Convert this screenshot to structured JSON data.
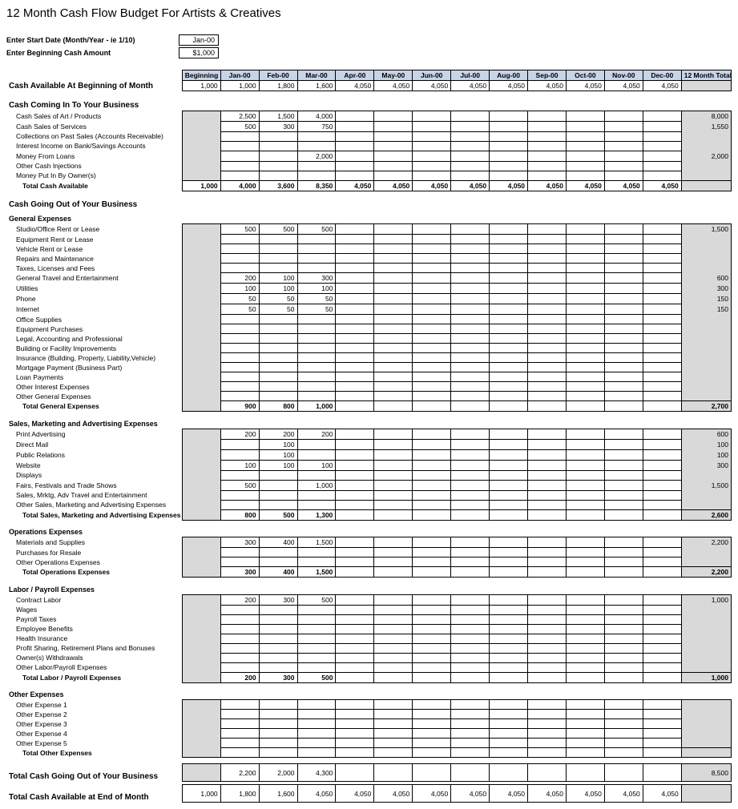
{
  "title": "12 Month Cash Flow Budget For Artists & Creatives",
  "inputs": {
    "startDateLabel": "Enter Start Date (Month/Year - ie 1/10)",
    "startDateValue": "Jan-00",
    "beginCashLabel": "Enter Beginning Cash Amount",
    "beginCashValue": "$1,000"
  },
  "headers": [
    "Beginning",
    "Jan-00",
    "Feb-00",
    "Mar-00",
    "Apr-00",
    "May-00",
    "Jun-00",
    "Jul-00",
    "Aug-00",
    "Sep-00",
    "Oct-00",
    "Nov-00",
    "Dec-00",
    "12 Month Total"
  ],
  "cashAvailLabel": "Cash Available At Beginning of Month",
  "cashAvail": [
    "1,000",
    "1,000",
    "1,800",
    "1,600",
    "4,050",
    "4,050",
    "4,050",
    "4,050",
    "4,050",
    "4,050",
    "4,050",
    "4,050",
    "4,050",
    ""
  ],
  "cashInTitle": "Cash Coming In To Your Business",
  "cashInRows": [
    {
      "label": "Cash Sales of Art / Products",
      "v": [
        "",
        "2,500",
        "1,500",
        "4,000",
        "",
        "",
        "",
        "",
        "",
        "",
        "",
        "",
        "",
        "8,000"
      ]
    },
    {
      "label": "Cash Sales of Services",
      "v": [
        "",
        "500",
        "300",
        "750",
        "",
        "",
        "",
        "",
        "",
        "",
        "",
        "",
        "",
        "1,550"
      ]
    },
    {
      "label": "Collections on Past Sales (Accounts Receivable)",
      "v": [
        "",
        "",
        "",
        "",
        "",
        "",
        "",
        "",
        "",
        "",
        "",
        "",
        "",
        ""
      ]
    },
    {
      "label": "Interest Income on Bank/Savings Accounts",
      "v": [
        "",
        "",
        "",
        "",
        "",
        "",
        "",
        "",
        "",
        "",
        "",
        "",
        "",
        ""
      ]
    },
    {
      "label": "Money From Loans",
      "v": [
        "",
        "",
        "",
        "2,000",
        "",
        "",
        "",
        "",
        "",
        "",
        "",
        "",
        "",
        "2,000"
      ]
    },
    {
      "label": "Other Cash Injections",
      "v": [
        "",
        "",
        "",
        "",
        "",
        "",
        "",
        "",
        "",
        "",
        "",
        "",
        "",
        ""
      ]
    },
    {
      "label": "Money Put In By Owner(s)",
      "v": [
        "",
        "",
        "",
        "",
        "",
        "",
        "",
        "",
        "",
        "",
        "",
        "",
        "",
        ""
      ]
    }
  ],
  "totalCashAvailLabel": "Total Cash Available",
  "totalCashAvail": [
    "1,000",
    "4,000",
    "3,600",
    "8,350",
    "4,050",
    "4,050",
    "4,050",
    "4,050",
    "4,050",
    "4,050",
    "4,050",
    "4,050",
    "4,050",
    ""
  ],
  "cashOutTitle": "Cash Going Out of Your Business",
  "sections": [
    {
      "title": "General Expenses",
      "rows": [
        {
          "label": "Studio/Office Rent or Lease",
          "v": [
            "",
            "500",
            "500",
            "500",
            "",
            "",
            "",
            "",
            "",
            "",
            "",
            "",
            "",
            "1,500"
          ]
        },
        {
          "label": "Equipment Rent or Lease",
          "v": [
            "",
            "",
            "",
            "",
            "",
            "",
            "",
            "",
            "",
            "",
            "",
            "",
            "",
            ""
          ]
        },
        {
          "label": "Vehicle Rent or Lease",
          "v": [
            "",
            "",
            "",
            "",
            "",
            "",
            "",
            "",
            "",
            "",
            "",
            "",
            "",
            ""
          ]
        },
        {
          "label": "Repairs and Maintenance",
          "v": [
            "",
            "",
            "",
            "",
            "",
            "",
            "",
            "",
            "",
            "",
            "",
            "",
            "",
            ""
          ]
        },
        {
          "label": "Taxes, Licenses and Fees",
          "v": [
            "",
            "",
            "",
            "",
            "",
            "",
            "",
            "",
            "",
            "",
            "",
            "",
            "",
            ""
          ]
        },
        {
          "label": "General Travel and Entertainment",
          "v": [
            "",
            "200",
            "100",
            "300",
            "",
            "",
            "",
            "",
            "",
            "",
            "",
            "",
            "",
            "600"
          ]
        },
        {
          "label": "Utilities",
          "v": [
            "",
            "100",
            "100",
            "100",
            "",
            "",
            "",
            "",
            "",
            "",
            "",
            "",
            "",
            "300"
          ]
        },
        {
          "label": "Phone",
          "v": [
            "",
            "50",
            "50",
            "50",
            "",
            "",
            "",
            "",
            "",
            "",
            "",
            "",
            "",
            "150"
          ]
        },
        {
          "label": "Internet",
          "v": [
            "",
            "50",
            "50",
            "50",
            "",
            "",
            "",
            "",
            "",
            "",
            "",
            "",
            "",
            "150"
          ]
        },
        {
          "label": "Office Supplies",
          "v": [
            "",
            "",
            "",
            "",
            "",
            "",
            "",
            "",
            "",
            "",
            "",
            "",
            "",
            ""
          ]
        },
        {
          "label": "Equipment Purchases",
          "v": [
            "",
            "",
            "",
            "",
            "",
            "",
            "",
            "",
            "",
            "",
            "",
            "",
            "",
            ""
          ]
        },
        {
          "label": "Legal, Accounting and Professional",
          "v": [
            "",
            "",
            "",
            "",
            "",
            "",
            "",
            "",
            "",
            "",
            "",
            "",
            "",
            ""
          ]
        },
        {
          "label": "Building or Facility Improvements",
          "v": [
            "",
            "",
            "",
            "",
            "",
            "",
            "",
            "",
            "",
            "",
            "",
            "",
            "",
            ""
          ]
        },
        {
          "label": "Insurance (Building, Property, Liability,Vehicle)",
          "v": [
            "",
            "",
            "",
            "",
            "",
            "",
            "",
            "",
            "",
            "",
            "",
            "",
            "",
            ""
          ]
        },
        {
          "label": "Mortgage Payment (Business Part)",
          "v": [
            "",
            "",
            "",
            "",
            "",
            "",
            "",
            "",
            "",
            "",
            "",
            "",
            "",
            ""
          ]
        },
        {
          "label": "Loan Payments",
          "v": [
            "",
            "",
            "",
            "",
            "",
            "",
            "",
            "",
            "",
            "",
            "",
            "",
            "",
            ""
          ]
        },
        {
          "label": "Other Interest Expenses",
          "v": [
            "",
            "",
            "",
            "",
            "",
            "",
            "",
            "",
            "",
            "",
            "",
            "",
            "",
            ""
          ]
        },
        {
          "label": "Other General Expenses",
          "v": [
            "",
            "",
            "",
            "",
            "",
            "",
            "",
            "",
            "",
            "",
            "",
            "",
            "",
            ""
          ]
        }
      ],
      "totalLabel": "Total General Expenses",
      "total": [
        "",
        "900",
        "800",
        "1,000",
        "",
        "",
        "",
        "",
        "",
        "",
        "",
        "",
        "",
        "2,700"
      ]
    },
    {
      "title": "Sales, Marketing and Advertising Expenses",
      "rows": [
        {
          "label": "Print Advertising",
          "v": [
            "",
            "200",
            "200",
            "200",
            "",
            "",
            "",
            "",
            "",
            "",
            "",
            "",
            "",
            "600"
          ]
        },
        {
          "label": "Direct Mail",
          "v": [
            "",
            "",
            "100",
            "",
            "",
            "",
            "",
            "",
            "",
            "",
            "",
            "",
            "",
            "100"
          ]
        },
        {
          "label": "Public Relations",
          "v": [
            "",
            "",
            "100",
            "",
            "",
            "",
            "",
            "",
            "",
            "",
            "",
            "",
            "",
            "100"
          ]
        },
        {
          "label": "Website",
          "v": [
            "",
            "100",
            "100",
            "100",
            "",
            "",
            "",
            "",
            "",
            "",
            "",
            "",
            "",
            "300"
          ]
        },
        {
          "label": "Displays",
          "v": [
            "",
            "",
            "",
            "",
            "",
            "",
            "",
            "",
            "",
            "",
            "",
            "",
            "",
            ""
          ]
        },
        {
          "label": "Fairs, Festivals and Trade Shows",
          "v": [
            "",
            "500",
            "",
            "1,000",
            "",
            "",
            "",
            "",
            "",
            "",
            "",
            "",
            "",
            "1,500"
          ]
        },
        {
          "label": "Sales, Mrktg, Adv Travel and Entertainment",
          "v": [
            "",
            "",
            "",
            "",
            "",
            "",
            "",
            "",
            "",
            "",
            "",
            "",
            "",
            ""
          ]
        },
        {
          "label": "Other Sales, Marketing and Advertising Expenses",
          "v": [
            "",
            "",
            "",
            "",
            "",
            "",
            "",
            "",
            "",
            "",
            "",
            "",
            "",
            ""
          ]
        }
      ],
      "totalLabel": "Total Sales, Marketing and Advertising Expenses",
      "total": [
        "",
        "800",
        "500",
        "1,300",
        "",
        "",
        "",
        "",
        "",
        "",
        "",
        "",
        "",
        "2,600"
      ]
    },
    {
      "title": "Operations Expenses",
      "rows": [
        {
          "label": "Materials and Supplies",
          "v": [
            "",
            "300",
            "400",
            "1,500",
            "",
            "",
            "",
            "",
            "",
            "",
            "",
            "",
            "",
            "2,200"
          ]
        },
        {
          "label": "Purchases for Resale",
          "v": [
            "",
            "",
            "",
            "",
            "",
            "",
            "",
            "",
            "",
            "",
            "",
            "",
            "",
            ""
          ]
        },
        {
          "label": "Other Operations Expenses",
          "v": [
            "",
            "",
            "",
            "",
            "",
            "",
            "",
            "",
            "",
            "",
            "",
            "",
            "",
            ""
          ]
        }
      ],
      "totalLabel": "Total Operations Expenses",
      "total": [
        "",
        "300",
        "400",
        "1,500",
        "",
        "",
        "",
        "",
        "",
        "",
        "",
        "",
        "",
        "2,200"
      ]
    },
    {
      "title": "Labor / Payroll Expenses",
      "rows": [
        {
          "label": "Contract Labor",
          "v": [
            "",
            "200",
            "300",
            "500",
            "",
            "",
            "",
            "",
            "",
            "",
            "",
            "",
            "",
            "1,000"
          ]
        },
        {
          "label": "Wages",
          "v": [
            "",
            "",
            "",
            "",
            "",
            "",
            "",
            "",
            "",
            "",
            "",
            "",
            "",
            ""
          ]
        },
        {
          "label": "Payroll Taxes",
          "v": [
            "",
            "",
            "",
            "",
            "",
            "",
            "",
            "",
            "",
            "",
            "",
            "",
            "",
            ""
          ]
        },
        {
          "label": "Employee Benefits",
          "v": [
            "",
            "",
            "",
            "",
            "",
            "",
            "",
            "",
            "",
            "",
            "",
            "",
            "",
            ""
          ]
        },
        {
          "label": "Health Insurance",
          "v": [
            "",
            "",
            "",
            "",
            "",
            "",
            "",
            "",
            "",
            "",
            "",
            "",
            "",
            ""
          ]
        },
        {
          "label": "Profit Sharing, Retirement Plans and Bonuses",
          "v": [
            "",
            "",
            "",
            "",
            "",
            "",
            "",
            "",
            "",
            "",
            "",
            "",
            "",
            ""
          ]
        },
        {
          "label": "Owner(s) Withdrawals",
          "v": [
            "",
            "",
            "",
            "",
            "",
            "",
            "",
            "",
            "",
            "",
            "",
            "",
            "",
            ""
          ]
        },
        {
          "label": "Other Labor/Payroll Expenses",
          "v": [
            "",
            "",
            "",
            "",
            "",
            "",
            "",
            "",
            "",
            "",
            "",
            "",
            "",
            ""
          ]
        }
      ],
      "totalLabel": "Total Labor / Payroll Expenses",
      "total": [
        "",
        "200",
        "300",
        "500",
        "",
        "",
        "",
        "",
        "",
        "",
        "",
        "",
        "",
        "1,000"
      ]
    },
    {
      "title": "Other Expenses",
      "rows": [
        {
          "label": "Other Expense 1",
          "v": [
            "",
            "",
            "",
            "",
            "",
            "",
            "",
            "",
            "",
            "",
            "",
            "",
            "",
            ""
          ]
        },
        {
          "label": "Other Expense 2",
          "v": [
            "",
            "",
            "",
            "",
            "",
            "",
            "",
            "",
            "",
            "",
            "",
            "",
            "",
            ""
          ]
        },
        {
          "label": "Other Expense 3",
          "v": [
            "",
            "",
            "",
            "",
            "",
            "",
            "",
            "",
            "",
            "",
            "",
            "",
            "",
            ""
          ]
        },
        {
          "label": "Other Expense 4",
          "v": [
            "",
            "",
            "",
            "",
            "",
            "",
            "",
            "",
            "",
            "",
            "",
            "",
            "",
            ""
          ]
        },
        {
          "label": "Other Expense 5",
          "v": [
            "",
            "",
            "",
            "",
            "",
            "",
            "",
            "",
            "",
            "",
            "",
            "",
            "",
            ""
          ]
        }
      ],
      "totalLabel": "Total Other Expenses",
      "total": [
        "",
        "",
        "",
        "",
        "",
        "",
        "",
        "",
        "",
        "",
        "",
        "",
        "",
        ""
      ]
    }
  ],
  "totalOutLabel": "Total Cash Going Out of Your Business",
  "totalOut": [
    "",
    "2,200",
    "2,000",
    "4,300",
    "",
    "",
    "",
    "",
    "",
    "",
    "",
    "",
    "",
    "8,500"
  ],
  "endCashLabel": "Total Cash Available at End of Month",
  "endCash": [
    "1,000",
    "1,800",
    "1,600",
    "4,050",
    "4,050",
    "4,050",
    "4,050",
    "4,050",
    "4,050",
    "4,050",
    "4,050",
    "4,050",
    "4,050",
    ""
  ],
  "style": {
    "headerBg": "#c8d4e8",
    "shadeBg": "#d9d9d9",
    "border": "#000000",
    "nCols": 14
  }
}
